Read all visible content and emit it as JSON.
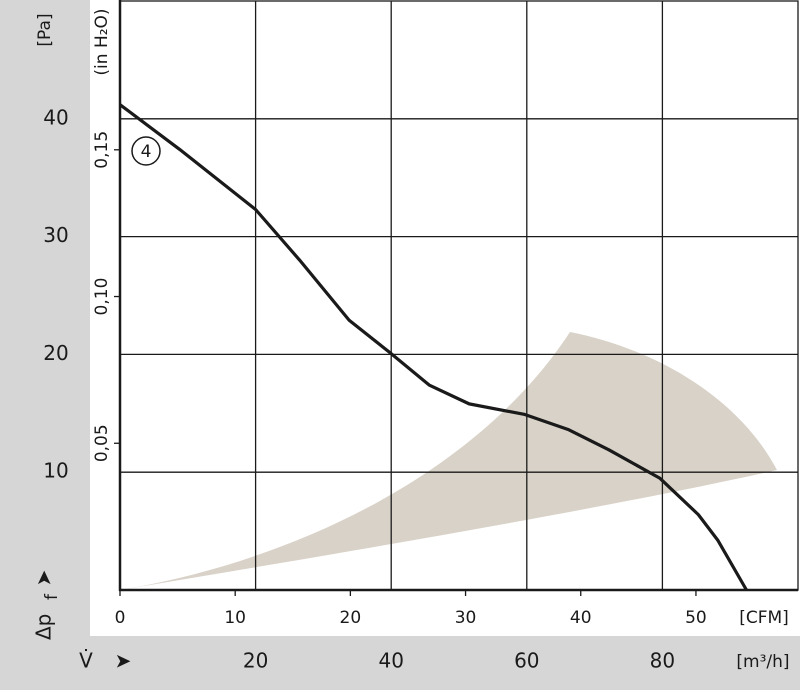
{
  "chart_data": {
    "type": "line",
    "y_unit_label": "[Pa]",
    "y2_unit_label": "(in H₂O)",
    "y_symbol": "Δp",
    "y_symbol_sub": "f",
    "x_symbol": "V̇",
    "x_unit_label": "[m³/h]",
    "x2_unit_label": "[CFM]",
    "curve_label": "4",
    "x": [
      0,
      8.8,
      20,
      26.5,
      33.8,
      39.7,
      45.6,
      51.5,
      59.7,
      66.2,
      72.1,
      79.6,
      85.3,
      88.2,
      92.4
    ],
    "series": [
      {
        "color": "#1a1a1a",
        "values": [
          41.2,
          37.4,
          32.3,
          28.0,
          22.9,
          20.2,
          17.4,
          15.8,
          14.9,
          13.6,
          11.9,
          9.5,
          6.4,
          4.2,
          0
        ]
      }
    ],
    "xlim": [
      0,
      100
    ],
    "xticks": [
      20,
      40,
      60,
      80
    ],
    "ylim": [
      0,
      50
    ],
    "yticks": [
      10,
      20,
      30,
      40
    ],
    "x2lim": [
      0,
      58.86
    ],
    "x2ticks": [
      0,
      10,
      20,
      30,
      40,
      50
    ],
    "y2lim": [
      0,
      0.2007
    ],
    "y2ticks": [
      {
        "value": 0.05,
        "label": "0,05"
      },
      {
        "value": 0.1,
        "label": "0,10"
      },
      {
        "value": 0.15,
        "label": "0,15"
      }
    ],
    "grid": true
  }
}
